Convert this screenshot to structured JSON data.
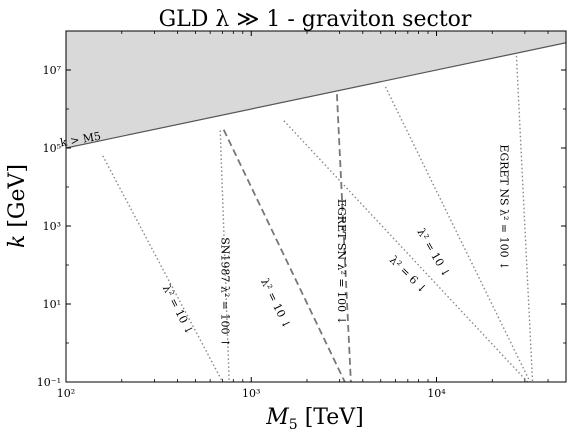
{
  "chart_data": {
    "type": "line",
    "title": "GLD λ ≫ 1 - graviton sector",
    "xlabel": "M5 [TeV]",
    "ylabel": "k [GeV]",
    "xscale": "log",
    "yscale": "log",
    "xlim": [
      100,
      50000
    ],
    "ylim": [
      0.1,
      100000000
    ],
    "x_ticks": [
      {
        "value": 100,
        "label": "10²"
      },
      {
        "value": 1000,
        "label": "10³"
      },
      {
        "value": 10000,
        "label": "10⁴"
      }
    ],
    "y_ticks": [
      {
        "value": 0.1,
        "label": "10⁻¹"
      },
      {
        "value": 10,
        "label": "10¹"
      },
      {
        "value": 1000,
        "label": "10³"
      },
      {
        "value": 100000,
        "label": "10⁵"
      },
      {
        "value": 10000000,
        "label": "10⁷"
      }
    ],
    "excluded_region": {
      "label": "k > M5",
      "boundary": [
        [
          100,
          100000
        ],
        [
          50000,
          50000000
        ]
      ],
      "color": "#d9d9d9"
    },
    "series": [
      {
        "style": "dotted",
        "label": "λ² = 10 ↓",
        "points": [
          [
            158,
            63000
          ],
          [
            700,
            0.1
          ]
        ]
      },
      {
        "style": "dotted",
        "label": "SN1987 λ² = 100 ↑",
        "points": [
          [
            680,
            281000
          ],
          [
            760,
            0.1
          ]
        ]
      },
      {
        "style": "dashed",
        "label": "λ² = 10 ↓",
        "points": [
          [
            710,
            295000
          ],
          [
            3200,
            0.1
          ]
        ]
      },
      {
        "style": "dashed",
        "label": "EGRET SN λ² = 100 ↓",
        "points": [
          [
            2900,
            2400000
          ],
          [
            3450,
            0.1
          ]
        ]
      },
      {
        "style": "dotted",
        "label": "λ² = 6 ↓",
        "points": [
          [
            1500,
            500000
          ],
          [
            31000,
            0.1
          ]
        ]
      },
      {
        "style": "dotted",
        "label": "λ² = 10 ↓",
        "points": [
          [
            5300,
            3700000
          ],
          [
            32000,
            0.1
          ]
        ]
      },
      {
        "style": "dotted",
        "label": "EGRET NS λ² = 100 ↓",
        "points": [
          [
            27000,
            23000000
          ],
          [
            33000,
            0.1
          ]
        ]
      }
    ],
    "annotations": [
      {
        "text": "k > M5",
        "x": 120,
        "y": 160000,
        "rotate": -10
      },
      {
        "text": "λ² = 10 ↓",
        "x": 400,
        "y": 7,
        "rotate": 63
      },
      {
        "text": "SN1987 λ² = 100 ↑",
        "x": 715,
        "y": 20,
        "rotate": 90
      },
      {
        "text": "λ² = 10 ↓",
        "x": 1350,
        "y": 10,
        "rotate": 64
      },
      {
        "text": "EGRET SN λ² = 100 ↓",
        "x": 3050,
        "y": 120,
        "rotate": 90
      },
      {
        "text": "λ² = 6 ↓",
        "x": 7000,
        "y": 55,
        "rotate": 45
      },
      {
        "text": "λ² = 10 ↓",
        "x": 9600,
        "y": 200,
        "rotate": 60
      },
      {
        "text": "EGRET NS λ² = 100 ↓",
        "x": 23000,
        "y": 3000,
        "rotate": 90
      }
    ],
    "grid": false,
    "legend": "none"
  }
}
